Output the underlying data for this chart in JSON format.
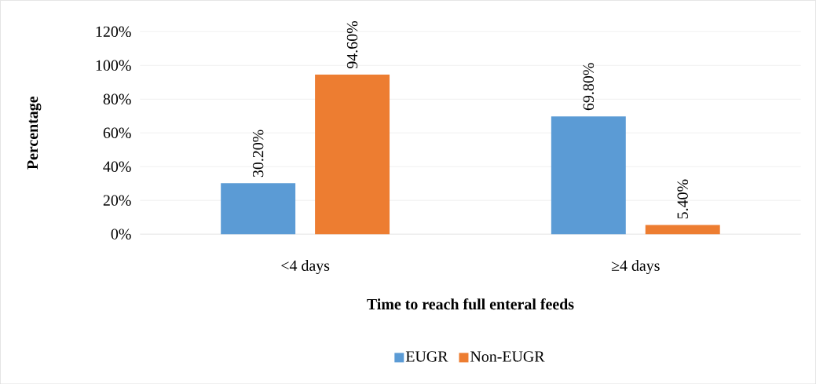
{
  "chart_data": {
    "type": "bar",
    "xlabel": "Time to reach full enteral feeds",
    "ylabel": "Percentage",
    "categories": [
      "<4 days",
      "≥4 days"
    ],
    "series": [
      {
        "name": "EUGR",
        "color": "#5b9bd5",
        "values": [
          30.2,
          69.8
        ],
        "value_labels": [
          "30.20%",
          "69.80%"
        ]
      },
      {
        "name": "Non-EUGR",
        "color": "#ed7d31",
        "values": [
          94.6,
          5.4
        ],
        "value_labels": [
          "94.60%",
          "5.40%"
        ]
      }
    ],
    "ylim": [
      0,
      120
    ],
    "yticks": [
      {
        "value": 0,
        "label": "0%"
      },
      {
        "value": 20,
        "label": "20%"
      },
      {
        "value": 40,
        "label": "40%"
      },
      {
        "value": 60,
        "label": "60%"
      },
      {
        "value": 80,
        "label": "80%"
      },
      {
        "value": 100,
        "label": "100%"
      },
      {
        "value": 120,
        "label": "120%"
      }
    ],
    "grid": "y",
    "legend": "bottom"
  }
}
